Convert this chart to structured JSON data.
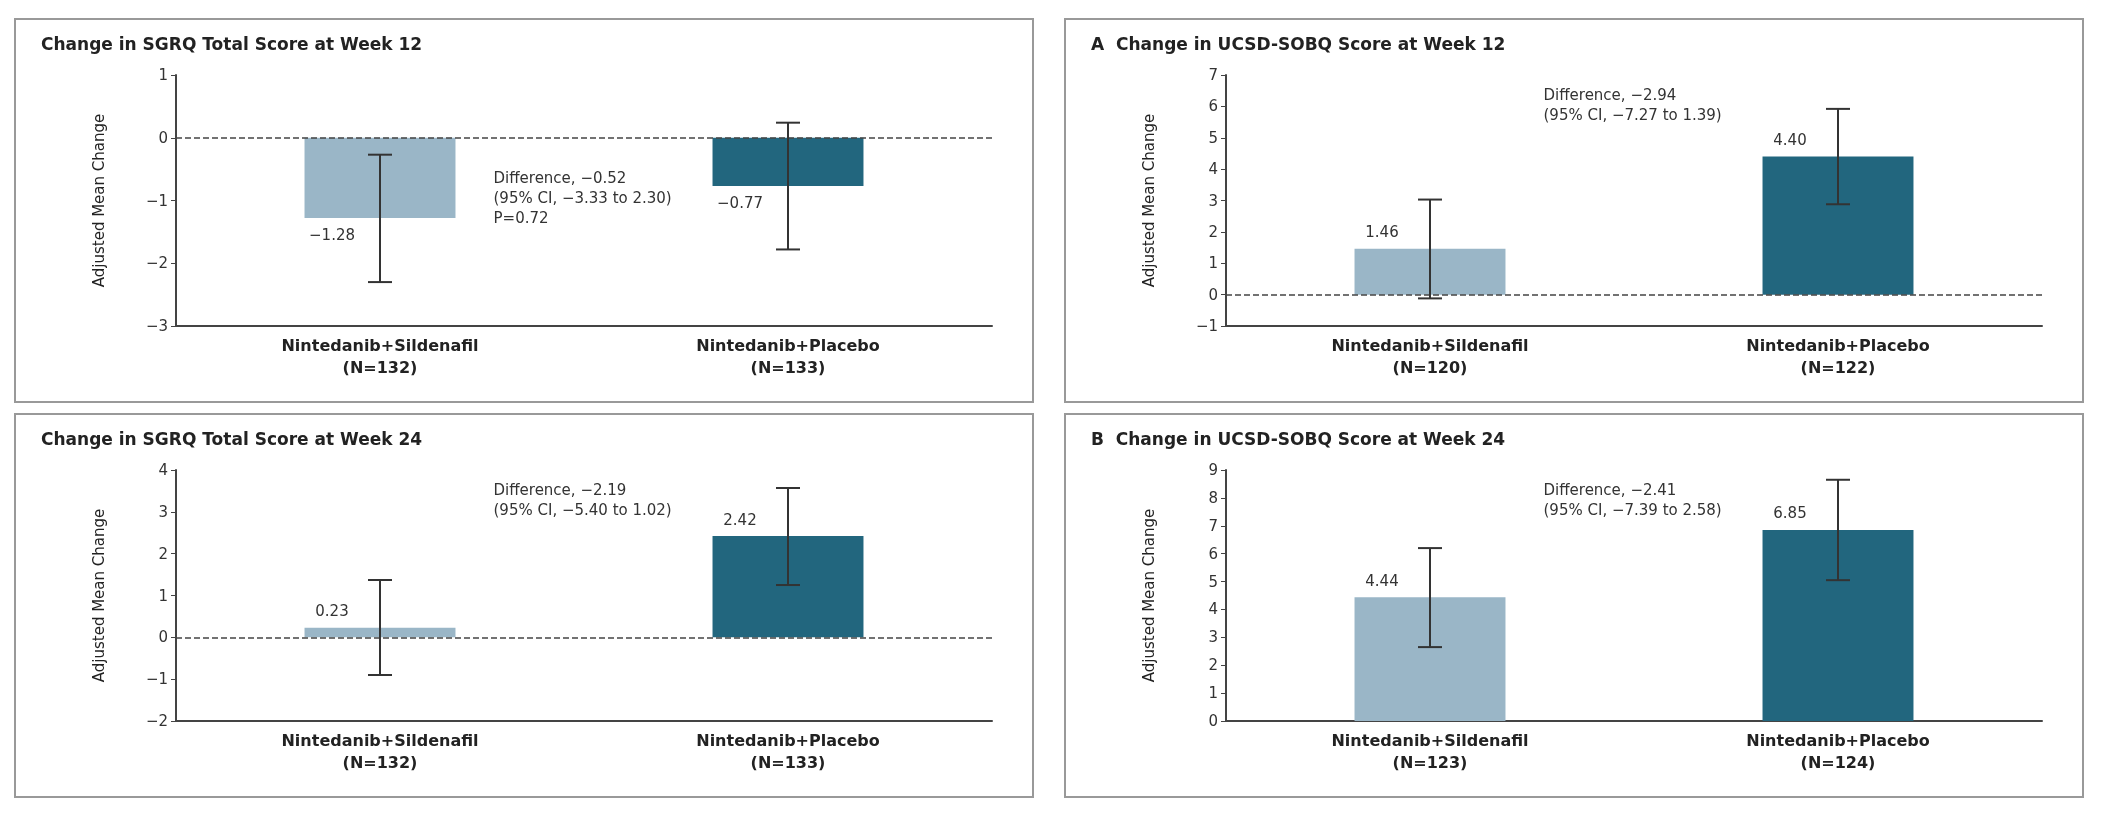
{
  "chart_data": [
    {
      "type": "bar",
      "title": "Change in SGRQ Total Score at Week 12",
      "ylabel": "Adjusted Mean Change",
      "categories": [
        "Nintedanib+Sildenafil\n(N=132)",
        "Nintedanib+Placebo\n(N=133)"
      ],
      "values": [
        -1.28,
        -0.77
      ],
      "colors": [
        "#9ab6c7",
        "#22667e"
      ],
      "errors": [
        [
          -2.3,
          -0.27
        ],
        [
          -1.78,
          0.24
        ]
      ],
      "value_labels": [
        "−1.28",
        "−0.77"
      ],
      "ylim": [
        -3,
        1
      ],
      "yticks": [
        -3,
        -2,
        -1,
        0,
        1
      ],
      "grid": false,
      "ref_lines": [
        {
          "axis": "y",
          "value": 0,
          "line_style": "dashed"
        }
      ],
      "annotations": [
        "Difference, −0.52\n(95% CI, −3.33 to 2.30)\nP=0.72"
      ]
    },
    {
      "type": "bar",
      "title": "Change in SGRQ Total Score at Week 24",
      "ylabel": "Adjusted Mean Change",
      "categories": [
        "Nintedanib+Sildenafil\n(N=132)",
        "Nintedanib+Placebo\n(N=133)"
      ],
      "values": [
        0.23,
        2.42
      ],
      "colors": [
        "#9ab6c7",
        "#22667e"
      ],
      "errors": [
        [
          -0.9,
          1.37
        ],
        [
          1.25,
          3.57
        ]
      ],
      "value_labels": [
        "0.23",
        "2.42"
      ],
      "ylim": [
        -2,
        4
      ],
      "yticks": [
        -2,
        -1,
        0,
        1,
        2,
        3,
        4
      ],
      "grid": false,
      "ref_lines": [
        {
          "axis": "y",
          "value": 0,
          "line_style": "dashed"
        }
      ],
      "annotations": [
        "Difference, −2.19\n(95% CI, −5.40 to 1.02)"
      ]
    },
    {
      "type": "bar",
      "title": "A  Change in UCSD-SOBQ Score at Week 12",
      "ylabel": "Adjusted Mean Change",
      "categories": [
        "Nintedanib+Sildenafil\n(N=120)",
        "Nintedanib+Placebo\n(N=122)"
      ],
      "values": [
        1.46,
        4.4
      ],
      "colors": [
        "#9ab6c7",
        "#22667e"
      ],
      "errors": [
        [
          -0.12,
          3.03
        ],
        [
          2.88,
          5.92
        ]
      ],
      "value_labels": [
        "1.46",
        "4.40"
      ],
      "ylim": [
        -1,
        7
      ],
      "yticks": [
        -1,
        0,
        1,
        2,
        3,
        4,
        5,
        6,
        7
      ],
      "grid": false,
      "ref_lines": [
        {
          "axis": "y",
          "value": 0,
          "line_style": "dashed"
        }
      ],
      "annotations": [
        "Difference, −2.94\n(95% CI, −7.27 to 1.39)"
      ]
    },
    {
      "type": "bar",
      "title": "B  Change in UCSD-SOBQ Score at Week 24",
      "ylabel": "Adjusted Mean Change",
      "categories": [
        "Nintedanib+Sildenafil\n(N=123)",
        "Nintedanib+Placebo\n(N=124)"
      ],
      "values": [
        4.44,
        6.85
      ],
      "colors": [
        "#9ab6c7",
        "#22667e"
      ],
      "errors": [
        [
          2.65,
          6.2
        ],
        [
          5.05,
          8.65
        ]
      ],
      "value_labels": [
        "4.44",
        "6.85"
      ],
      "ylim": [
        0,
        9
      ],
      "yticks": [
        0,
        1,
        2,
        3,
        4,
        5,
        6,
        7,
        8,
        9
      ],
      "grid": false,
      "annotations": [
        "Difference, −2.41\n(95% CI, −7.39 to 2.58)"
      ]
    }
  ]
}
